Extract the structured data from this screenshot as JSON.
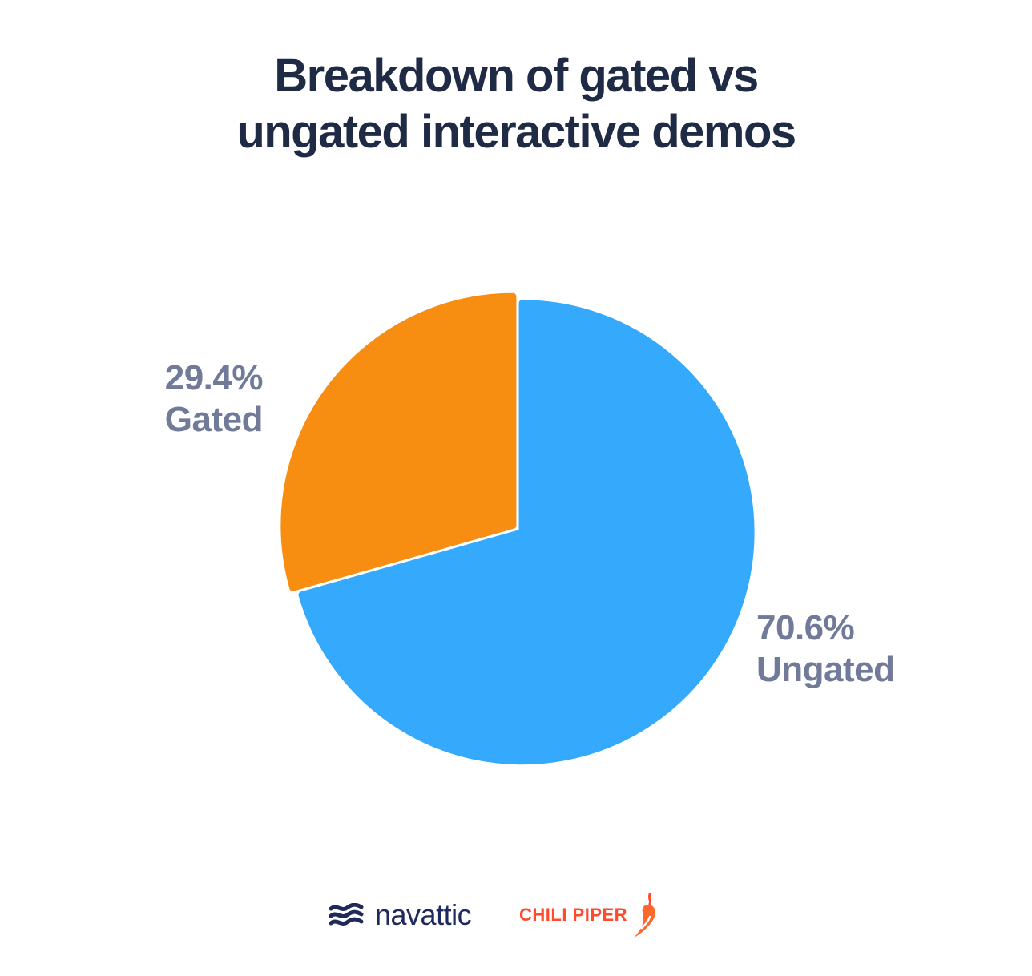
{
  "chart_data": {
    "type": "pie",
    "title": [
      "Breakdown of gated vs",
      "ungated interactive demos"
    ],
    "slices": [
      {
        "name": "Gated",
        "percent_label": "29.4%",
        "value": 29.4,
        "color": "#F78E12"
      },
      {
        "name": "Ungated",
        "percent_label": "70.6%",
        "value": 70.6,
        "color": "#35A9FB"
      }
    ],
    "label_color": "#717A99"
  },
  "footer": {
    "navattic": {
      "name": "navattic",
      "icon": "navattic-waves-icon"
    },
    "chili_piper": {
      "name": "CHILI PIPER",
      "icon": "chili-pepper-icon"
    }
  }
}
